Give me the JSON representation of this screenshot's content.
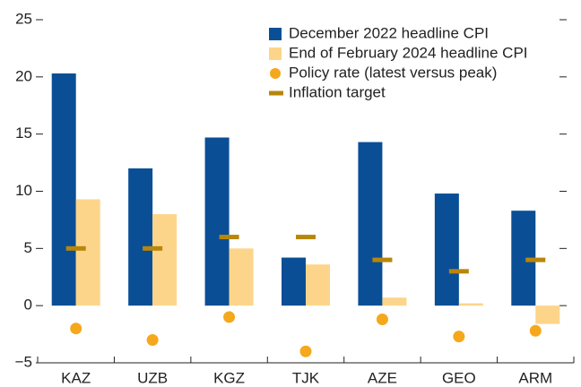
{
  "chart_data": {
    "type": "bar",
    "categories": [
      "KAZ",
      "UZB",
      "KGZ",
      "TJK",
      "AZE",
      "GEO",
      "ARM"
    ],
    "series": [
      {
        "name": "December 2022 headline CPI",
        "color": "#0a4f96",
        "marker": "bar",
        "values": [
          20.3,
          12.0,
          14.7,
          4.2,
          14.3,
          9.8,
          8.3
        ]
      },
      {
        "name": "End of February 2024 headline CPI",
        "color": "#fdd58a",
        "marker": "bar",
        "values": [
          9.3,
          8.0,
          5.0,
          3.6,
          0.7,
          0.2,
          -1.6
        ]
      },
      {
        "name": "Policy rate (latest versus peak)",
        "color": "#f5a81c",
        "marker": "dot",
        "values": [
          -2.0,
          -3.0,
          -1.0,
          -4.0,
          -1.2,
          -2.7,
          -2.2
        ]
      },
      {
        "name": "Inflation target",
        "color": "#b8860b",
        "marker": "dash",
        "values": [
          5,
          5,
          6,
          6,
          4,
          3,
          4
        ]
      }
    ],
    "ylim": [
      -5,
      25
    ],
    "yticks": [
      {
        "value": -5,
        "label": "−5"
      },
      0,
      5,
      10,
      15,
      20,
      25
    ],
    "legend": "upper right"
  }
}
